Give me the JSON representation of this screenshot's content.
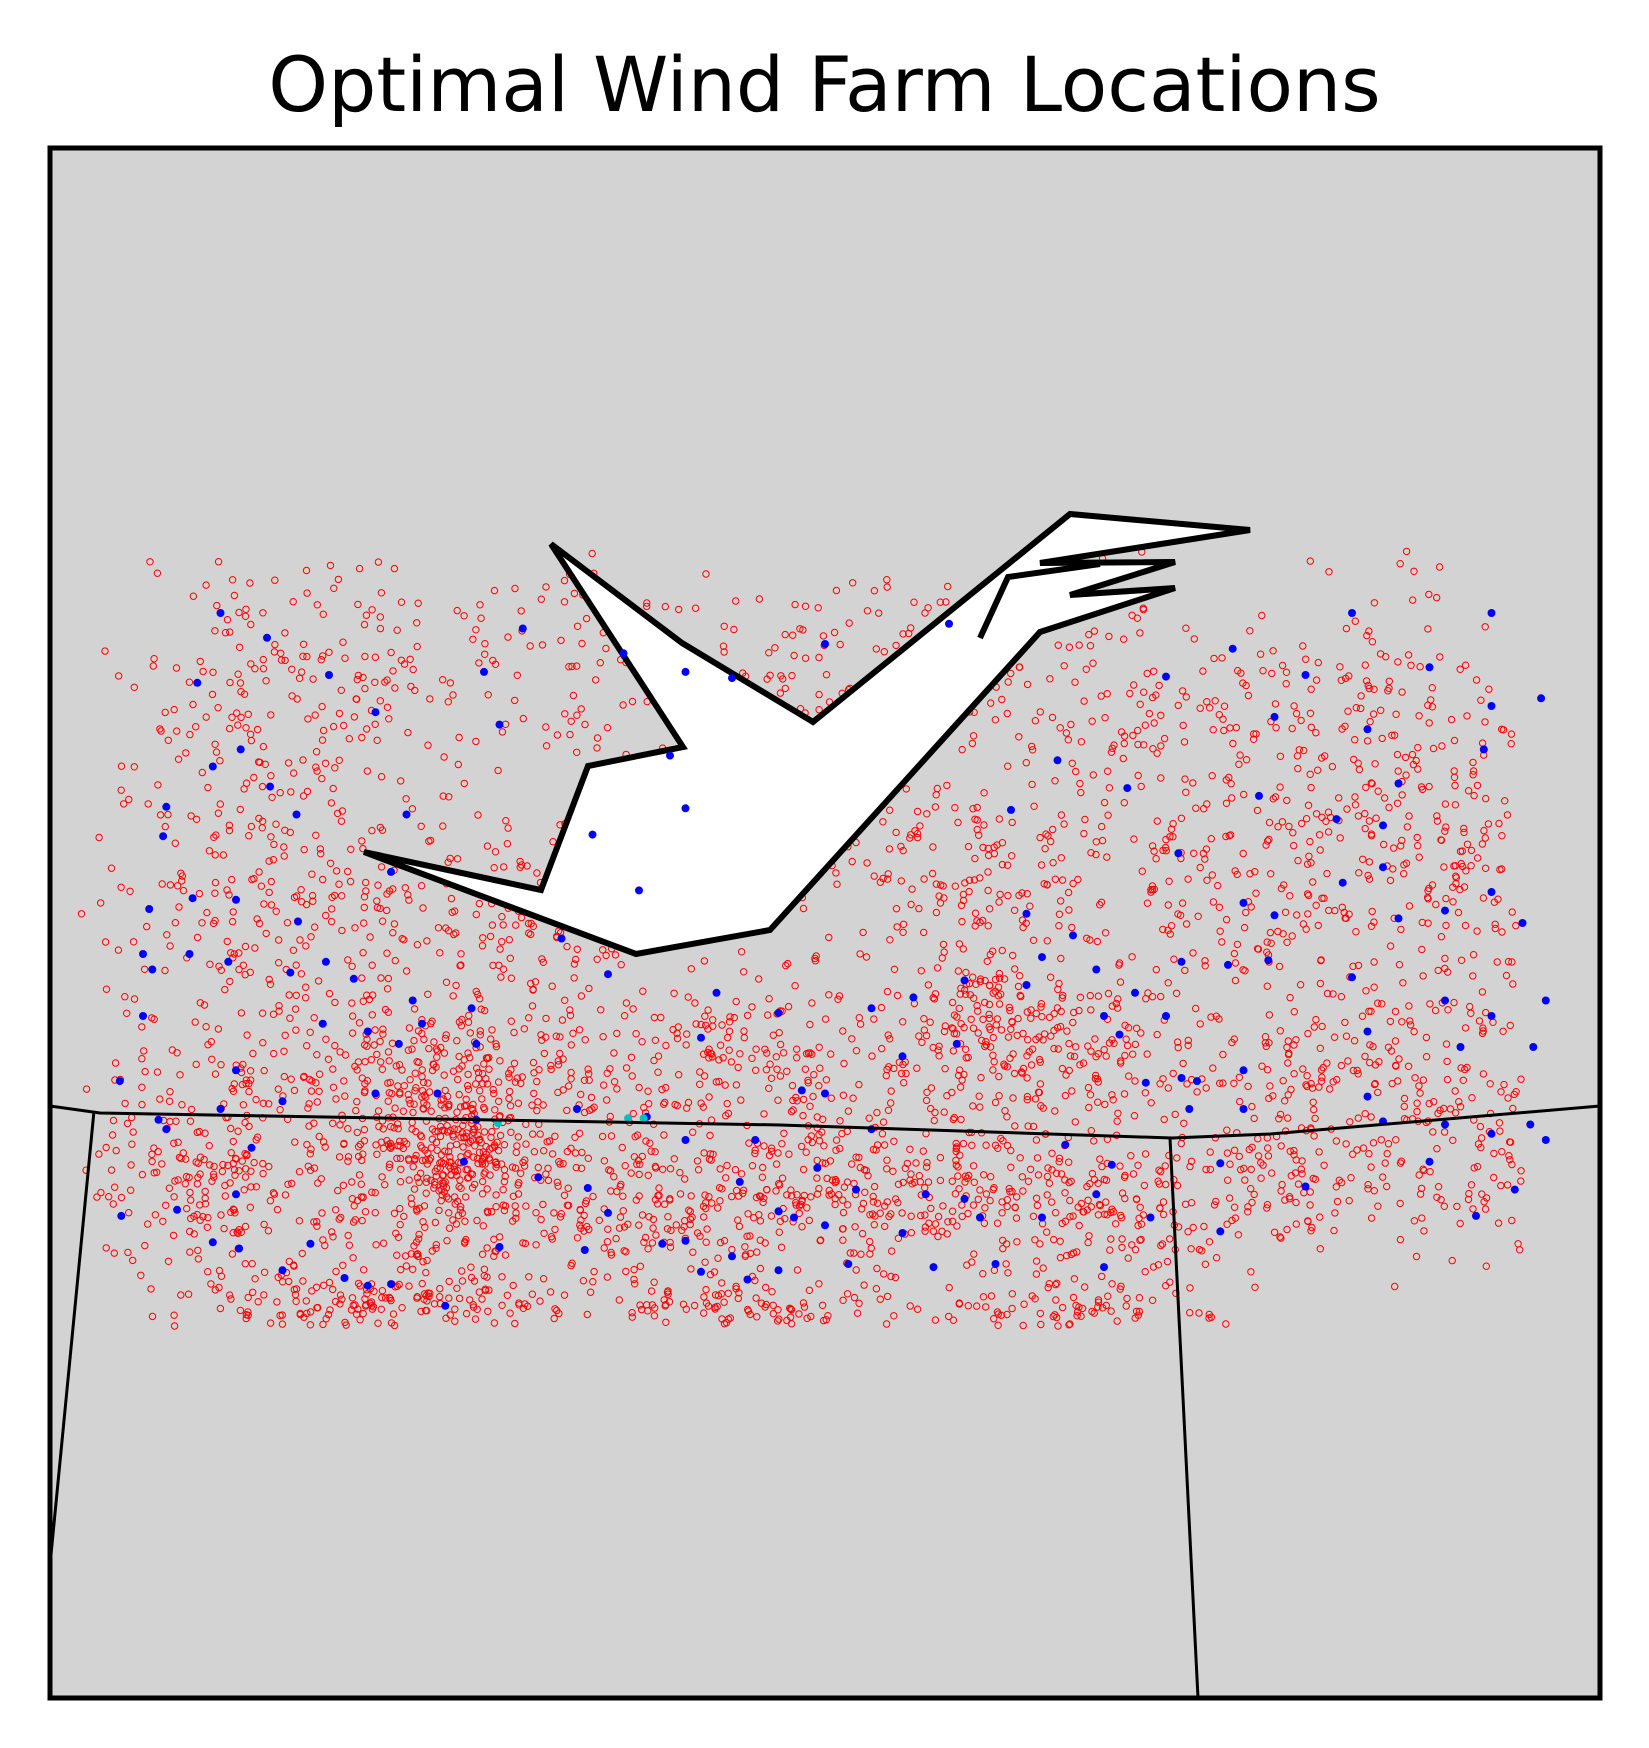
{
  "chart_data": {
    "type": "scatter",
    "title": "Optimal Wind Farm Locations",
    "xlabel": "",
    "ylabel": "",
    "grid": false,
    "legend": "none",
    "colors": {
      "background": "#d3d3d3",
      "lake": "#ffffff",
      "boundary": "#000000",
      "candidate_sites": "#ff0000",
      "optimal_sites": "#0000ff",
      "special_sites": "#00bfbf"
    },
    "series": [
      {
        "marker": "hollow-circle-small",
        "color": "#ff0000",
        "clusters": [
          {
            "cx": 0.12,
            "cy": 0.35,
            "sx": 0.04,
            "sy": 0.05,
            "n": 120
          },
          {
            "cx": 0.22,
            "cy": 0.35,
            "sx": 0.04,
            "sy": 0.04,
            "n": 90
          },
          {
            "cx": 0.35,
            "cy": 0.34,
            "sx": 0.05,
            "sy": 0.04,
            "n": 110
          },
          {
            "cx": 0.52,
            "cy": 0.33,
            "sx": 0.06,
            "sy": 0.03,
            "n": 90
          },
          {
            "cx": 0.7,
            "cy": 0.35,
            "sx": 0.06,
            "sy": 0.04,
            "n": 120
          },
          {
            "cx": 0.86,
            "cy": 0.36,
            "sx": 0.06,
            "sy": 0.05,
            "n": 150
          },
          {
            "cx": 0.15,
            "cy": 0.5,
            "sx": 0.06,
            "sy": 0.05,
            "n": 220
          },
          {
            "cx": 0.3,
            "cy": 0.5,
            "sx": 0.05,
            "sy": 0.04,
            "n": 150
          },
          {
            "cx": 0.6,
            "cy": 0.47,
            "sx": 0.06,
            "sy": 0.04,
            "n": 200
          },
          {
            "cx": 0.78,
            "cy": 0.46,
            "sx": 0.06,
            "sy": 0.05,
            "n": 200
          },
          {
            "cx": 0.92,
            "cy": 0.48,
            "sx": 0.04,
            "sy": 0.05,
            "n": 140
          },
          {
            "cx": 0.52,
            "cy": 0.4,
            "sx": 0.02,
            "sy": 0.03,
            "n": 45
          },
          {
            "cx": 0.26,
            "cy": 0.6,
            "sx": 0.06,
            "sy": 0.025,
            "n": 260
          },
          {
            "cx": 0.45,
            "cy": 0.59,
            "sx": 0.05,
            "sy": 0.03,
            "n": 160
          },
          {
            "cx": 0.63,
            "cy": 0.58,
            "sx": 0.06,
            "sy": 0.025,
            "n": 200
          },
          {
            "cx": 0.61,
            "cy": 0.55,
            "sx": 0.02,
            "sy": 0.02,
            "n": 70
          },
          {
            "cx": 0.85,
            "cy": 0.59,
            "sx": 0.07,
            "sy": 0.03,
            "n": 150
          },
          {
            "cx": 0.1,
            "cy": 0.65,
            "sx": 0.04,
            "sy": 0.04,
            "n": 220
          },
          {
            "cx": 0.25,
            "cy": 0.67,
            "sx": 0.05,
            "sy": 0.04,
            "n": 330
          },
          {
            "cx": 0.26,
            "cy": 0.65,
            "sx": 0.02,
            "sy": 0.015,
            "n": 120
          },
          {
            "cx": 0.4,
            "cy": 0.68,
            "sx": 0.06,
            "sy": 0.03,
            "n": 230
          },
          {
            "cx": 0.55,
            "cy": 0.67,
            "sx": 0.06,
            "sy": 0.03,
            "n": 240
          },
          {
            "cx": 0.68,
            "cy": 0.68,
            "sx": 0.05,
            "sy": 0.03,
            "n": 200
          },
          {
            "cx": 0.8,
            "cy": 0.66,
            "sx": 0.03,
            "sy": 0.03,
            "n": 100
          },
          {
            "cx": 0.91,
            "cy": 0.66,
            "sx": 0.05,
            "sy": 0.03,
            "n": 110
          },
          {
            "cx": 0.2,
            "cy": 0.745,
            "sx": 0.06,
            "sy": 0.012,
            "n": 160
          },
          {
            "cx": 0.45,
            "cy": 0.75,
            "sx": 0.06,
            "sy": 0.012,
            "n": 120
          },
          {
            "cx": 0.66,
            "cy": 0.75,
            "sx": 0.05,
            "sy": 0.01,
            "n": 80
          }
        ]
      },
      {
        "marker": "filled-circle-small",
        "color": "#0000ff",
        "points": [
          [
            0.11,
            0.3
          ],
          [
            0.14,
            0.316
          ],
          [
            0.18,
            0.34
          ],
          [
            0.21,
            0.364
          ],
          [
            0.23,
            0.43
          ],
          [
            0.22,
            0.467
          ],
          [
            0.28,
            0.338
          ],
          [
            0.305,
            0.31
          ],
          [
            0.29,
            0.372
          ],
          [
            0.37,
            0.326
          ],
          [
            0.4,
            0.392
          ],
          [
            0.41,
            0.338
          ],
          [
            0.44,
            0.342
          ],
          [
            0.72,
            0.341
          ],
          [
            0.763,
            0.323
          ],
          [
            0.93,
            0.3
          ],
          [
            0.962,
            0.355
          ],
          [
            0.79,
            0.367
          ],
          [
            0.695,
            0.413
          ],
          [
            0.728,
            0.455
          ],
          [
            0.78,
            0.418
          ],
          [
            0.83,
            0.433
          ],
          [
            0.86,
            0.437
          ],
          [
            0.834,
            0.474
          ],
          [
            0.62,
            0.427
          ],
          [
            0.65,
            0.395
          ],
          [
            0.58,
            0.307
          ],
          [
            0.5,
            0.32
          ],
          [
            0.41,
            0.426
          ],
          [
            0.35,
            0.443
          ],
          [
            0.38,
            0.479
          ],
          [
            0.33,
            0.51
          ],
          [
            0.36,
            0.533
          ],
          [
            0.43,
            0.545
          ],
          [
            0.42,
            0.574
          ],
          [
            0.47,
            0.558
          ],
          [
            0.53,
            0.555
          ],
          [
            0.557,
            0.548
          ],
          [
            0.63,
            0.54
          ],
          [
            0.69,
            0.572
          ],
          [
            0.72,
            0.56
          ],
          [
            0.76,
            0.527
          ],
          [
            0.77,
            0.487
          ],
          [
            0.79,
            0.495
          ],
          [
            0.63,
            0.494
          ],
          [
            0.66,
            0.508
          ],
          [
            0.64,
            0.522
          ],
          [
            0.59,
            0.537
          ],
          [
            0.585,
            0.578
          ],
          [
            0.55,
            0.586
          ],
          [
            0.5,
            0.61
          ],
          [
            0.485,
            0.608
          ],
          [
            0.495,
            0.658
          ],
          [
            0.53,
            0.633
          ],
          [
            0.5,
            0.695
          ],
          [
            0.47,
            0.686
          ],
          [
            0.445,
            0.667
          ],
          [
            0.44,
            0.715
          ],
          [
            0.45,
            0.73
          ],
          [
            0.42,
            0.725
          ],
          [
            0.395,
            0.707
          ],
          [
            0.36,
            0.687
          ],
          [
            0.347,
            0.671
          ],
          [
            0.345,
            0.711
          ],
          [
            0.315,
            0.664
          ],
          [
            0.267,
            0.654
          ],
          [
            0.29,
            0.709
          ],
          [
            0.255,
            0.747
          ],
          [
            0.22,
            0.733
          ],
          [
            0.205,
            0.734
          ],
          [
            0.19,
            0.729
          ],
          [
            0.168,
            0.707
          ],
          [
            0.15,
            0.724
          ],
          [
            0.13,
            0.645
          ],
          [
            0.12,
            0.675
          ],
          [
            0.105,
            0.706
          ],
          [
            0.122,
            0.71
          ],
          [
            0.082,
            0.685
          ],
          [
            0.046,
            0.689
          ],
          [
            0.075,
            0.633
          ],
          [
            0.11,
            0.62
          ],
          [
            0.12,
            0.595
          ],
          [
            0.15,
            0.615
          ],
          [
            0.21,
            0.61
          ],
          [
            0.25,
            0.61
          ],
          [
            0.275,
            0.627
          ],
          [
            0.24,
            0.565
          ],
          [
            0.234,
            0.55
          ],
          [
            0.205,
            0.57
          ],
          [
            0.178,
            0.525
          ],
          [
            0.16,
            0.499
          ],
          [
            0.12,
            0.485
          ],
          [
            0.092,
            0.484
          ],
          [
            0.073,
            0.444
          ],
          [
            0.064,
            0.491
          ],
          [
            0.045,
            0.602
          ],
          [
            0.07,
            0.627
          ],
          [
            0.06,
            0.56
          ],
          [
            0.066,
            0.53
          ],
          [
            0.105,
            0.399
          ],
          [
            0.095,
            0.345
          ],
          [
            0.142,
            0.412
          ],
          [
            0.159,
            0.43
          ],
          [
            0.123,
            0.388
          ],
          [
            0.272,
            0.555
          ],
          [
            0.275,
            0.578
          ],
          [
            0.225,
            0.578
          ],
          [
            0.176,
            0.565
          ],
          [
            0.196,
            0.536
          ],
          [
            0.155,
            0.532
          ],
          [
            0.115,
            0.525
          ],
          [
            0.09,
            0.52
          ],
          [
            0.075,
            0.425
          ],
          [
            0.06,
            0.52
          ],
          [
            0.34,
            0.62
          ],
          [
            0.385,
            0.625
          ],
          [
            0.41,
            0.64
          ],
          [
            0.455,
            0.64
          ],
          [
            0.52,
            0.672
          ],
          [
            0.565,
            0.675
          ],
          [
            0.59,
            0.678
          ],
          [
            0.61,
            0.72
          ],
          [
            0.57,
            0.722
          ],
          [
            0.55,
            0.7
          ],
          [
            0.515,
            0.72
          ],
          [
            0.47,
            0.724
          ],
          [
            0.48,
            0.69
          ],
          [
            0.41,
            0.705
          ],
          [
            0.6,
            0.69
          ],
          [
            0.655,
            0.643
          ],
          [
            0.685,
            0.656
          ],
          [
            0.675,
            0.675
          ],
          [
            0.64,
            0.69
          ],
          [
            0.68,
            0.722
          ],
          [
            0.71,
            0.69
          ],
          [
            0.735,
            0.62
          ],
          [
            0.73,
            0.6
          ],
          [
            0.675,
            0.53
          ],
          [
            0.68,
            0.56
          ],
          [
            0.74,
            0.602
          ],
          [
            0.755,
            0.655
          ],
          [
            0.77,
            0.62
          ],
          [
            0.85,
            0.612
          ],
          [
            0.86,
            0.628
          ],
          [
            0.89,
            0.654
          ],
          [
            0.9,
            0.63
          ],
          [
            0.93,
            0.636
          ],
          [
            0.945,
            0.672
          ],
          [
            0.92,
            0.689
          ],
          [
            0.81,
            0.67
          ],
          [
            0.755,
            0.699
          ],
          [
            0.85,
            0.57
          ],
          [
            0.84,
            0.535
          ],
          [
            0.87,
            0.497
          ],
          [
            0.9,
            0.492
          ],
          [
            0.93,
            0.48
          ],
          [
            0.925,
            0.388
          ],
          [
            0.93,
            0.36
          ],
          [
            0.85,
            0.375
          ],
          [
            0.89,
            0.335
          ],
          [
            0.84,
            0.3
          ],
          [
            0.81,
            0.34
          ],
          [
            0.87,
            0.41
          ],
          [
            0.86,
            0.464
          ],
          [
            0.786,
            0.524
          ],
          [
            0.73,
            0.525
          ],
          [
            0.7,
            0.545
          ],
          [
            0.707,
            0.603
          ],
          [
            0.77,
            0.595
          ],
          [
            0.965,
            0.64
          ],
          [
            0.955,
            0.63
          ],
          [
            0.95,
            0.5
          ],
          [
            0.957,
            0.58
          ],
          [
            0.9,
            0.55
          ],
          [
            0.91,
            0.58
          ],
          [
            0.965,
            0.55
          ],
          [
            0.93,
            0.56
          ]
        ]
      },
      {
        "marker": "filled-circle-small",
        "color": "#00bfbf",
        "points": [
          [
            0.289,
            0.629
          ],
          [
            0.373,
            0.626
          ],
          [
            0.383,
            0.626
          ]
        ]
      }
    ]
  }
}
